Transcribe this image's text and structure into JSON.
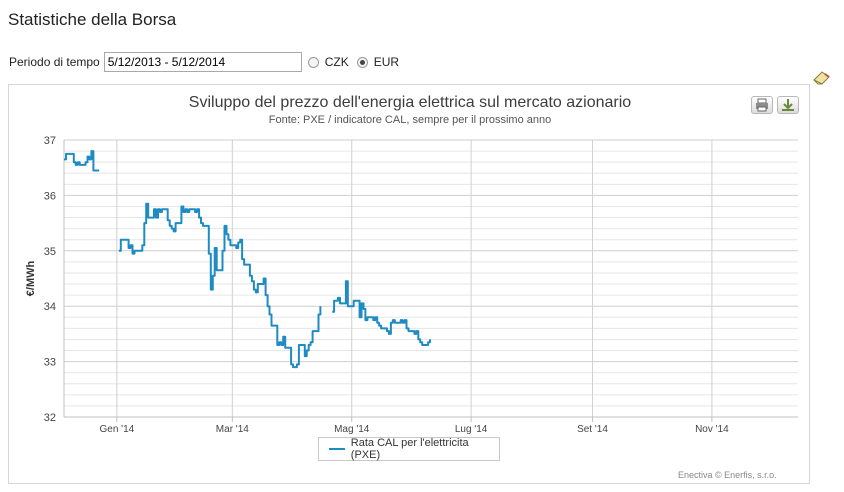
{
  "page": {
    "title": "Statistiche della Borsa"
  },
  "period": {
    "label": "Periodo di tempo",
    "value": "5/12/2013 - 5/12/2014"
  },
  "currency": {
    "options": [
      {
        "label": "CZK",
        "selected": false
      },
      {
        "label": "EUR",
        "selected": true
      }
    ]
  },
  "colors": {
    "series": "#1e8bc3",
    "grid": "#d9d9d9",
    "axis": "#c0c0c0"
  },
  "icons": {
    "tool": "eraser-icon",
    "print": "print-icon",
    "download": "download-icon"
  },
  "credits": "Enectiva © Enerfis, s.r.o.",
  "chart_data": {
    "type": "line",
    "title": "Sviluppo del prezzo dell'energia elettrica sul mercato azionario",
    "subtitle": "Fonte: PXE / indicatore CAL, sempre per il prossimo anno",
    "xlabel": "",
    "ylabel": "€/MWh",
    "xlim": [
      "2013-12-05",
      "2014-12-15"
    ],
    "ylim": [
      32,
      37
    ],
    "yticks": [
      32,
      33,
      34,
      35,
      36,
      37
    ],
    "xticks": [
      {
        "date": "2014-01-01",
        "label": "Gen '14"
      },
      {
        "date": "2014-03-01",
        "label": "Mar '14"
      },
      {
        "date": "2014-05-01",
        "label": "Mag '14"
      },
      {
        "date": "2014-07-01",
        "label": "Lug '14"
      },
      {
        "date": "2014-09-01",
        "label": "Set '14"
      },
      {
        "date": "2014-11-01",
        "label": "Nov '14"
      }
    ],
    "grid": true,
    "legend": "bottom-center",
    "series": [
      {
        "name": "Rata CAL per l'elettricita (PXE)",
        "segments": [
          [
            [
              "2013-12-05",
              36.65
            ],
            [
              "2013-12-06",
              36.75
            ],
            [
              "2013-12-09",
              36.75
            ],
            [
              "2013-12-10",
              36.6
            ],
            [
              "2013-12-11",
              36.55
            ],
            [
              "2013-12-12",
              36.6
            ],
            [
              "2013-12-13",
              36.55
            ],
            [
              "2013-12-16",
              36.6
            ],
            [
              "2013-12-17",
              36.7
            ],
            [
              "2013-12-18",
              36.65
            ],
            [
              "2013-12-19",
              36.8
            ],
            [
              "2013-12-20",
              36.45
            ],
            [
              "2013-12-23",
              36.45
            ]
          ],
          [
            [
              "2014-01-02",
              35.0
            ],
            [
              "2014-01-03",
              35.2
            ],
            [
              "2014-01-06",
              35.2
            ],
            [
              "2014-01-07",
              35.05
            ],
            [
              "2014-01-08",
              35.1
            ],
            [
              "2014-01-09",
              34.95
            ],
            [
              "2014-01-10",
              35.0
            ],
            [
              "2014-01-13",
              35.0
            ],
            [
              "2014-01-14",
              35.1
            ],
            [
              "2014-01-15",
              35.5
            ],
            [
              "2014-01-16",
              35.85
            ],
            [
              "2014-01-17",
              35.6
            ],
            [
              "2014-01-20",
              35.75
            ],
            [
              "2014-01-21",
              35.6
            ],
            [
              "2014-01-22",
              35.75
            ],
            [
              "2014-01-23",
              35.7
            ],
            [
              "2014-01-24",
              35.75
            ],
            [
              "2014-01-27",
              35.55
            ],
            [
              "2014-01-28",
              35.45
            ],
            [
              "2014-01-29",
              35.4
            ],
            [
              "2014-01-30",
              35.35
            ],
            [
              "2014-01-31",
              35.5
            ],
            [
              "2014-02-03",
              35.8
            ],
            [
              "2014-02-04",
              35.7
            ],
            [
              "2014-02-05",
              35.75
            ],
            [
              "2014-02-06",
              35.7
            ],
            [
              "2014-02-07",
              35.75
            ],
            [
              "2014-02-10",
              35.7
            ],
            [
              "2014-02-11",
              35.75
            ],
            [
              "2014-02-12",
              35.6
            ],
            [
              "2014-02-13",
              35.5
            ],
            [
              "2014-02-14",
              35.45
            ],
            [
              "2014-02-17",
              34.95
            ],
            [
              "2014-02-18",
              34.3
            ],
            [
              "2014-02-19",
              34.55
            ],
            [
              "2014-02-20",
              35.05
            ],
            [
              "2014-02-21",
              34.65
            ],
            [
              "2014-02-24",
              35.0
            ],
            [
              "2014-02-25",
              35.45
            ],
            [
              "2014-02-26",
              35.3
            ],
            [
              "2014-02-27",
              35.2
            ],
            [
              "2014-02-28",
              35.1
            ],
            [
              "2014-03-03",
              35.05
            ],
            [
              "2014-03-04",
              35.15
            ],
            [
              "2014-03-05",
              35.2
            ],
            [
              "2014-03-06",
              34.85
            ],
            [
              "2014-03-07",
              34.75
            ],
            [
              "2014-03-10",
              34.55
            ],
            [
              "2014-03-11",
              34.45
            ],
            [
              "2014-03-12",
              34.3
            ],
            [
              "2014-03-13",
              34.25
            ],
            [
              "2014-03-14",
              34.4
            ],
            [
              "2014-03-17",
              34.5
            ],
            [
              "2014-03-18",
              34.2
            ],
            [
              "2014-03-19",
              34.0
            ],
            [
              "2014-03-20",
              33.85
            ],
            [
              "2014-03-21",
              33.65
            ],
            [
              "2014-03-24",
              33.3
            ],
            [
              "2014-03-25",
              33.35
            ],
            [
              "2014-03-26",
              33.3
            ],
            [
              "2014-03-27",
              33.45
            ],
            [
              "2014-03-28",
              33.25
            ],
            [
              "2014-03-31",
              32.95
            ],
            [
              "2014-04-01",
              32.9
            ],
            [
              "2014-04-02",
              32.9
            ],
            [
              "2014-04-03",
              32.95
            ],
            [
              "2014-04-04",
              33.3
            ],
            [
              "2014-04-07",
              33.1
            ],
            [
              "2014-04-08",
              33.2
            ],
            [
              "2014-04-09",
              33.3
            ],
            [
              "2014-04-10",
              33.35
            ],
            [
              "2014-04-11",
              33.55
            ],
            [
              "2014-04-14",
              33.85
            ],
            [
              "2014-04-15",
              34.0
            ]
          ],
          [
            [
              "2014-04-21",
              33.9
            ],
            [
              "2014-04-22",
              34.1
            ],
            [
              "2014-04-23",
              34.1
            ],
            [
              "2014-04-24",
              34.15
            ],
            [
              "2014-04-25",
              34.05
            ],
            [
              "2014-04-28",
              34.45
            ],
            [
              "2014-04-29",
              34.0
            ],
            [
              "2014-04-30",
              34.0
            ],
            [
              "2014-05-02",
              34.1
            ],
            [
              "2014-05-05",
              33.8
            ],
            [
              "2014-05-06",
              34.05
            ],
            [
              "2014-05-07",
              33.95
            ],
            [
              "2014-05-08",
              33.75
            ],
            [
              "2014-05-09",
              33.8
            ],
            [
              "2014-05-12",
              33.75
            ],
            [
              "2014-05-13",
              33.8
            ],
            [
              "2014-05-14",
              33.7
            ],
            [
              "2014-05-15",
              33.65
            ],
            [
              "2014-05-16",
              33.6
            ],
            [
              "2014-05-19",
              33.55
            ],
            [
              "2014-05-20",
              33.5
            ],
            [
              "2014-05-21",
              33.7
            ],
            [
              "2014-05-22",
              33.75
            ],
            [
              "2014-05-23",
              33.7
            ],
            [
              "2014-05-26",
              33.75
            ],
            [
              "2014-05-27",
              33.7
            ],
            [
              "2014-05-28",
              33.75
            ],
            [
              "2014-05-29",
              33.6
            ],
            [
              "2014-05-30",
              33.55
            ],
            [
              "2014-06-02",
              33.5
            ],
            [
              "2014-06-03",
              33.55
            ],
            [
              "2014-06-04",
              33.4
            ],
            [
              "2014-06-05",
              33.35
            ],
            [
              "2014-06-06",
              33.3
            ],
            [
              "2014-06-09",
              33.35
            ],
            [
              "2014-06-10",
              33.4
            ]
          ]
        ]
      }
    ]
  }
}
